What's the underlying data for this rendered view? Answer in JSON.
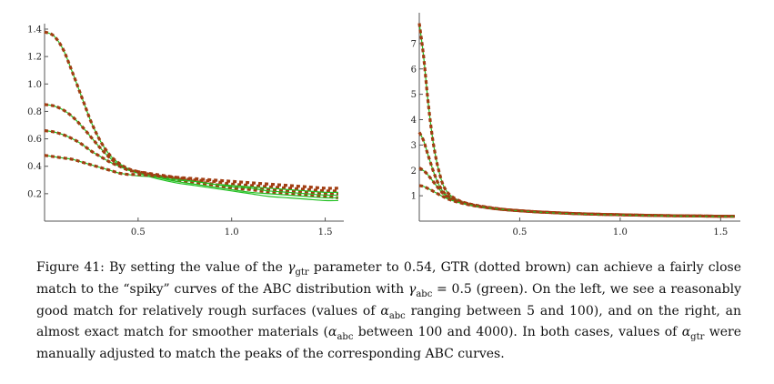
{
  "chart_data": [
    {
      "type": "line",
      "xlim": [
        0,
        1.58
      ],
      "ylim": [
        0,
        1.4
      ],
      "xticks": [
        0.5,
        1.0,
        1.5
      ],
      "xtick_labels": [
        "0.5",
        "1.0",
        "1.5"
      ],
      "yticks": [
        0.2,
        0.4,
        0.6,
        0.8,
        1.0,
        1.2,
        1.4
      ],
      "ytick_labels": [
        "0.2",
        "0.4",
        "0.6",
        "0.8",
        "1.0",
        "1.2",
        "1.4"
      ],
      "grid": false,
      "x": [
        0,
        0.05,
        0.1,
        0.15,
        0.2,
        0.25,
        0.3,
        0.35,
        0.4,
        0.45,
        0.5,
        0.6,
        0.7,
        0.8,
        0.9,
        1.0,
        1.1,
        1.2,
        1.3,
        1.4,
        1.5,
        1.57
      ],
      "series": [
        {
          "style": "solid-green",
          "values": [
            1.38,
            1.35,
            1.25,
            1.08,
            0.9,
            0.72,
            0.58,
            0.48,
            0.42,
            0.38,
            0.35,
            0.31,
            0.28,
            0.26,
            0.24,
            0.22,
            0.2,
            0.18,
            0.17,
            0.16,
            0.15,
            0.15
          ]
        },
        {
          "style": "dotted-brown",
          "values": [
            1.38,
            1.35,
            1.25,
            1.08,
            0.9,
            0.72,
            0.58,
            0.48,
            0.42,
            0.38,
            0.36,
            0.33,
            0.3,
            0.28,
            0.26,
            0.24,
            0.23,
            0.21,
            0.2,
            0.19,
            0.18,
            0.17
          ]
        },
        {
          "style": "solid-green",
          "values": [
            0.85,
            0.84,
            0.81,
            0.76,
            0.69,
            0.61,
            0.53,
            0.46,
            0.41,
            0.38,
            0.36,
            0.32,
            0.29,
            0.27,
            0.25,
            0.23,
            0.21,
            0.2,
            0.19,
            0.18,
            0.17,
            0.17
          ]
        },
        {
          "style": "dotted-brown",
          "values": [
            0.85,
            0.84,
            0.81,
            0.76,
            0.69,
            0.61,
            0.53,
            0.46,
            0.41,
            0.38,
            0.36,
            0.33,
            0.31,
            0.29,
            0.27,
            0.25,
            0.24,
            0.23,
            0.22,
            0.21,
            0.2,
            0.2
          ]
        },
        {
          "style": "solid-green",
          "values": [
            0.66,
            0.65,
            0.63,
            0.6,
            0.56,
            0.51,
            0.47,
            0.43,
            0.4,
            0.37,
            0.35,
            0.33,
            0.31,
            0.29,
            0.27,
            0.25,
            0.24,
            0.22,
            0.21,
            0.2,
            0.19,
            0.19
          ]
        },
        {
          "style": "dotted-brown",
          "values": [
            0.66,
            0.65,
            0.63,
            0.6,
            0.56,
            0.51,
            0.47,
            0.43,
            0.4,
            0.37,
            0.36,
            0.34,
            0.32,
            0.3,
            0.29,
            0.27,
            0.26,
            0.25,
            0.24,
            0.23,
            0.22,
            0.22
          ]
        },
        {
          "style": "solid-green",
          "values": [
            0.48,
            0.47,
            0.46,
            0.45,
            0.43,
            0.41,
            0.39,
            0.37,
            0.35,
            0.34,
            0.33,
            0.32,
            0.3,
            0.29,
            0.27,
            0.26,
            0.25,
            0.24,
            0.23,
            0.22,
            0.21,
            0.21
          ]
        },
        {
          "style": "dotted-brown",
          "values": [
            0.48,
            0.47,
            0.46,
            0.45,
            0.43,
            0.41,
            0.39,
            0.37,
            0.35,
            0.34,
            0.34,
            0.33,
            0.32,
            0.31,
            0.3,
            0.29,
            0.28,
            0.27,
            0.26,
            0.25,
            0.24,
            0.24
          ]
        }
      ]
    },
    {
      "type": "line",
      "xlim": [
        0,
        1.58
      ],
      "ylim": [
        0,
        8
      ],
      "xticks": [
        0.5,
        1.0,
        1.5
      ],
      "xtick_labels": [
        "0.5",
        "1.0",
        "1.5"
      ],
      "yticks": [
        1,
        2,
        3,
        4,
        5,
        6,
        7
      ],
      "ytick_labels": [
        "1",
        "2",
        "3",
        "4",
        "5",
        "6",
        "7"
      ],
      "grid": false,
      "x": [
        0,
        0.02,
        0.04,
        0.06,
        0.08,
        0.1,
        0.12,
        0.15,
        0.2,
        0.25,
        0.3,
        0.4,
        0.5,
        0.6,
        0.8,
        1.0,
        1.2,
        1.4,
        1.57
      ],
      "series": [
        {
          "style": "solid-green",
          "values": [
            7.8,
            6.6,
            5.0,
            3.6,
            2.6,
            1.9,
            1.4,
            1.05,
            0.8,
            0.68,
            0.6,
            0.48,
            0.4,
            0.35,
            0.28,
            0.24,
            0.21,
            0.19,
            0.18
          ]
        },
        {
          "style": "dotted-brown",
          "values": [
            7.8,
            6.6,
            5.0,
            3.6,
            2.6,
            1.9,
            1.4,
            1.05,
            0.8,
            0.68,
            0.6,
            0.48,
            0.41,
            0.36,
            0.29,
            0.25,
            0.22,
            0.2,
            0.19
          ]
        },
        {
          "style": "solid-green",
          "values": [
            3.5,
            3.2,
            2.7,
            2.2,
            1.75,
            1.4,
            1.15,
            0.95,
            0.78,
            0.67,
            0.59,
            0.48,
            0.4,
            0.35,
            0.28,
            0.24,
            0.21,
            0.19,
            0.18
          ]
        },
        {
          "style": "dotted-brown",
          "values": [
            3.5,
            3.2,
            2.7,
            2.2,
            1.75,
            1.4,
            1.15,
            0.95,
            0.78,
            0.67,
            0.59,
            0.48,
            0.41,
            0.36,
            0.29,
            0.25,
            0.22,
            0.2,
            0.19
          ]
        },
        {
          "style": "solid-green",
          "values": [
            2.1,
            2.0,
            1.85,
            1.65,
            1.45,
            1.25,
            1.08,
            0.9,
            0.76,
            0.66,
            0.58,
            0.47,
            0.4,
            0.35,
            0.28,
            0.24,
            0.21,
            0.19,
            0.18
          ]
        },
        {
          "style": "dotted-brown",
          "values": [
            2.1,
            2.0,
            1.85,
            1.65,
            1.45,
            1.25,
            1.08,
            0.9,
            0.76,
            0.66,
            0.58,
            0.47,
            0.41,
            0.36,
            0.29,
            0.25,
            0.22,
            0.2,
            0.19
          ]
        },
        {
          "style": "solid-green",
          "values": [
            1.4,
            1.37,
            1.3,
            1.22,
            1.13,
            1.04,
            0.96,
            0.85,
            0.73,
            0.64,
            0.57,
            0.47,
            0.4,
            0.35,
            0.28,
            0.24,
            0.21,
            0.19,
            0.18
          ]
        },
        {
          "style": "dotted-brown",
          "values": [
            1.4,
            1.37,
            1.3,
            1.22,
            1.13,
            1.04,
            0.96,
            0.85,
            0.73,
            0.64,
            0.57,
            0.47,
            0.41,
            0.36,
            0.29,
            0.25,
            0.22,
            0.2,
            0.19
          ]
        }
      ]
    }
  ],
  "colors": {
    "abc_green": "#22c022",
    "gtr_brown": "#a13d12",
    "axis": "#555555"
  },
  "caption": {
    "label": "Figure 41:",
    "t1": " By setting the value of the ",
    "m1": "γ",
    "s1": "gtr",
    "t2": " parameter to 0.54, GTR (dotted brown) can achieve a fairly close match to the “spiky” curves of the ABC distribution with ",
    "m2": "γ",
    "s2": "abc",
    "t3": " = 0.5 (green). On the left, we see a reasonably good match for relatively rough surfaces (values of ",
    "m3": "α",
    "s3": "abc",
    "t4": " ranging between 5 and 100), and on the right, an almost exact match for smoother materials (",
    "m4": "α",
    "s4": "abc",
    "t5": " between 100 and 4000). In both cases, values of ",
    "m5": "α",
    "s5": "gtr",
    "t6": " were manually adjusted to match the peaks of the corresponding ABC curves."
  }
}
